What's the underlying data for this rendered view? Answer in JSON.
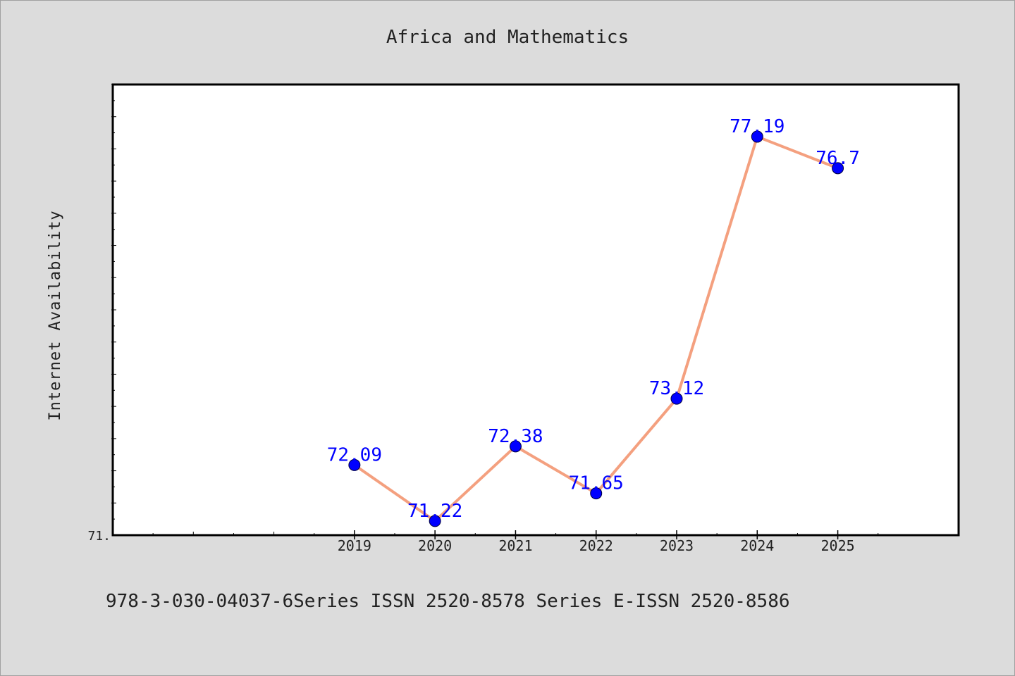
{
  "chart_data": {
    "type": "line",
    "title": "Africa and Mathematics",
    "xlabel": "",
    "ylabel": "Internet Availability",
    "footer": "978-3-030-04037-6Series ISSN 2520-8578 Series E-ISSN 2520-8586",
    "x": [
      2019,
      2020,
      2021,
      2022,
      2023,
      2024,
      2025
    ],
    "x_tick_labels": [
      "2019",
      "2020",
      "2021",
      "2022",
      "2023",
      "2024",
      "2025"
    ],
    "series": [
      {
        "values": [
          72.09,
          71.22,
          72.38,
          71.65,
          73.12,
          77.19,
          76.7
        ],
        "data_labels": [
          "72.09",
          "71.22",
          "72.38",
          "71.65",
          "73.12",
          "77.19",
          "76.7"
        ]
      }
    ],
    "y_tick_labels": [
      "71."
    ],
    "xlim": [
      2016,
      2026.5
    ],
    "ylim": [
      71.0,
      78.0
    ],
    "grid": false,
    "colors": {
      "background": "#dcdcdc",
      "plot_background": "#ffffff",
      "line": "#f4a07f",
      "marker": "#0000ff",
      "data_label": "#0000ff",
      "text": "#222222"
    }
  }
}
